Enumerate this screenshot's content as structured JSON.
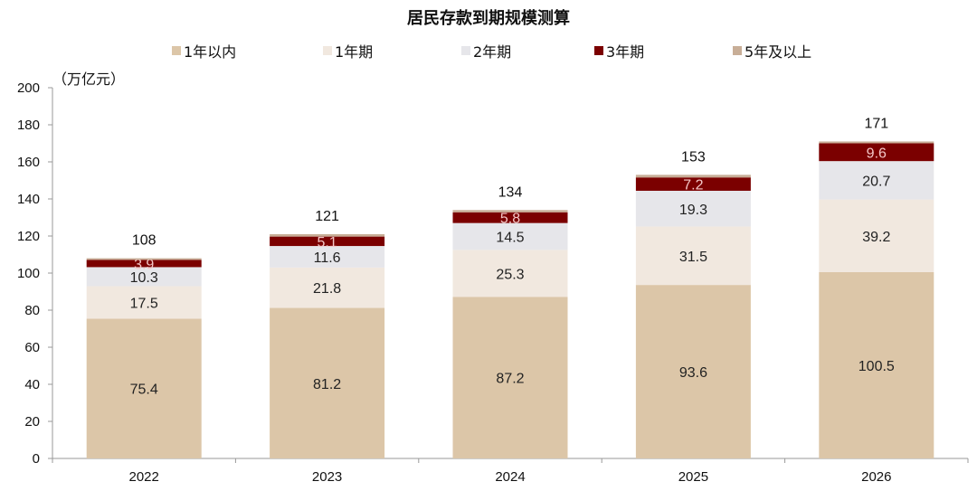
{
  "chart_data": {
    "type": "bar",
    "stacked": true,
    "title": "居民存款到期规模测算",
    "ylabel": "（万亿元）",
    "xlabel": "",
    "ylim": [
      0,
      200
    ],
    "yticks": [
      0,
      20,
      40,
      60,
      80,
      100,
      120,
      140,
      160,
      180,
      200
    ],
    "categories": [
      "2022",
      "2023",
      "2024",
      "2025",
      "2026"
    ],
    "series": [
      {
        "name": "1年以内",
        "color": "#dcc6a8",
        "values": [
          75.4,
          81.2,
          87.2,
          93.6,
          100.5
        ]
      },
      {
        "name": "1年期",
        "color": "#f1e8df",
        "values": [
          17.5,
          21.8,
          25.3,
          31.5,
          39.2
        ]
      },
      {
        "name": "2年期",
        "color": "#e6e6ea",
        "values": [
          10.3,
          11.6,
          14.5,
          19.3,
          20.7
        ]
      },
      {
        "name": "3年期",
        "color": "#7b0000",
        "values": [
          3.9,
          5.1,
          5.8,
          7.2,
          9.6
        ]
      },
      {
        "name": "5年及以上",
        "color": "#c8ae97",
        "values": [
          0.9,
          1.3,
          1.2,
          1.4,
          1.0
        ]
      }
    ],
    "totals": [
      108,
      121,
      134,
      153,
      171
    ],
    "legend_position": "top",
    "grid": false
  },
  "notes": {
    "watermark_obscures_label": "2024"
  }
}
